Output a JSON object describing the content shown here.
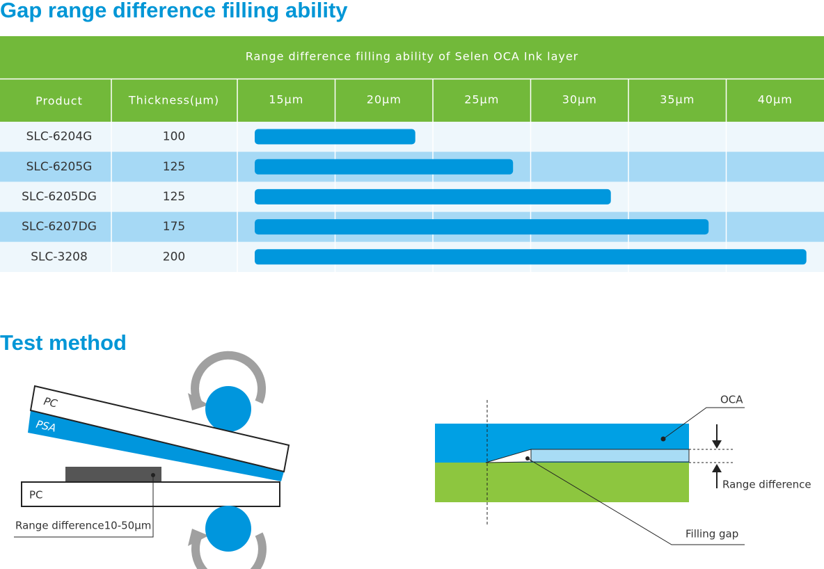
{
  "header": {
    "title": "Gap range difference filling ability"
  },
  "table": {
    "caption": "Range difference filling ability of Selen OCA Ink layer",
    "product_header": "Product",
    "thickness_header": "Thickness(μm)",
    "columns": [
      {
        "value": 15,
        "label": "15μm"
      },
      {
        "value": 20,
        "label": "20μm"
      },
      {
        "value": 25,
        "label": "25μm"
      },
      {
        "value": 30,
        "label": "30μm"
      },
      {
        "value": 35,
        "label": "35μm"
      },
      {
        "value": 40,
        "label": "40μm"
      }
    ],
    "rows": [
      {
        "product": "SLC-6204G",
        "thickness": 100,
        "range": 20
      },
      {
        "product": "SLC-6205G",
        "thickness": 125,
        "range": 25
      },
      {
        "product": "SLC-6205DG",
        "thickness": 125,
        "range": 30
      },
      {
        "product": "SLC-6207DG",
        "thickness": 175,
        "range": 35
      },
      {
        "product": "SLC-3208",
        "thickness": 200,
        "range": 40
      }
    ]
  },
  "test": {
    "title": "Test method",
    "left": {
      "top_layer": "PC",
      "middle_layer": "PSA",
      "bottom_layer": "PC",
      "note": "Range difference10-50μm"
    },
    "right": {
      "oca": "OCA",
      "range": "Range difference",
      "gap": "Filling gap"
    }
  }
}
